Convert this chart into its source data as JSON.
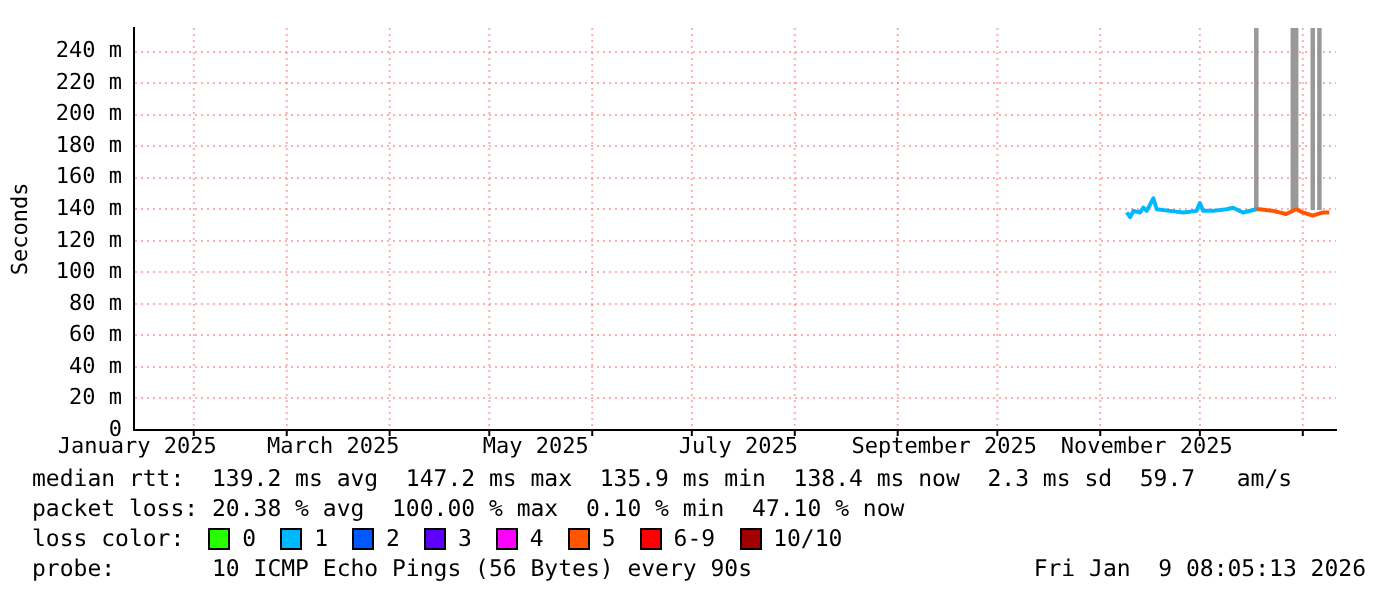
{
  "chart_data": {
    "type": "line",
    "ylabel": "Seconds",
    "xlim": [
      "2025-01-14",
      "2026-01-11"
    ],
    "xticks": [
      {
        "value": "2025-01-15",
        "label": "January 2025"
      },
      {
        "value": "2025-02",
        "label": null
      },
      {
        "value": "2025-03",
        "label": null
      },
      {
        "value": "2025-03-15",
        "label": "March 2025"
      },
      {
        "value": "2025-04",
        "label": null
      },
      {
        "value": "2025-05",
        "label": null
      },
      {
        "value": "2025-05-15",
        "label": "May 2025"
      },
      {
        "value": "2025-06",
        "label": null
      },
      {
        "value": "2025-07",
        "label": null
      },
      {
        "value": "2025-07-15",
        "label": "July 2025"
      },
      {
        "value": "2025-08",
        "label": null
      },
      {
        "value": "2025-09",
        "label": null
      },
      {
        "value": "2025-09-15",
        "label": "September 2025"
      },
      {
        "value": "2025-10",
        "label": null
      },
      {
        "value": "2025-11",
        "label": null
      },
      {
        "value": "2025-11-15",
        "label": "November 2025"
      },
      {
        "value": "2025-12",
        "label": null
      },
      {
        "value": "2026-01",
        "label": null
      }
    ],
    "ylim": [
      0,
      255
    ],
    "yticks": [
      0,
      {
        "value": 20,
        "label": "20 m"
      },
      {
        "value": 40,
        "label": "40 m"
      },
      {
        "value": 60,
        "label": "60 m"
      },
      {
        "value": 80,
        "label": "80 m"
      },
      {
        "value": 100,
        "label": "100 m"
      },
      {
        "value": 120,
        "label": "120 m"
      },
      {
        "value": 140,
        "label": "140 m"
      },
      {
        "value": 160,
        "label": "160 m"
      },
      {
        "value": 180,
        "label": "180 m"
      },
      {
        "value": 200,
        "label": "200 m"
      },
      {
        "value": 220,
        "label": "220 m"
      },
      {
        "value": 240,
        "label": "240 m"
      }
    ],
    "grid": true,
    "legend": "bottom",
    "legend_title": "loss color:",
    "series": [
      {
        "name": "0",
        "color": "#26ff00"
      },
      {
        "name": "1",
        "color": "#00b8ff",
        "x": [
          "2025-11-09",
          "2025-11-10",
          "2025-11-11",
          "2025-11-13",
          "2025-11-14",
          "2025-11-15",
          "2025-11-17",
          "2025-11-18",
          "2025-11-22",
          "2025-11-26",
          "2025-11-30",
          "2025-12-01",
          "2025-12-02",
          "2025-12-05",
          "2025-12-09",
          "2025-12-11",
          "2025-12-14",
          "2025-12-18"
        ],
        "values": [
          138,
          135,
          139,
          138,
          141,
          139,
          147,
          140,
          139,
          138,
          139,
          144,
          139,
          139,
          140,
          141,
          138,
          140
        ]
      },
      {
        "name": "2",
        "color": "#0059ff"
      },
      {
        "name": "3",
        "color": "#5e00ff"
      },
      {
        "name": "4",
        "color": "#ff00ff"
      },
      {
        "name": "5",
        "color": "#ff5500",
        "x": [
          "2025-12-18",
          "2025-12-19",
          "2025-12-23",
          "2025-12-27",
          "2025-12-30",
          "2026-01-01",
          "2026-01-04",
          "2026-01-07",
          "2026-01-09"
        ],
        "values": [
          140,
          140,
          139,
          137,
          140,
          138,
          136,
          138,
          138
        ]
      },
      {
        "name": "6-9",
        "color": "#ff0000"
      },
      {
        "name": "10/10",
        "color": "#a10000"
      },
      {
        "type": "bar",
        "color": "#999999",
        "x": [
          "2025-12-18",
          "2025-12-29",
          "2025-12-30",
          "2026-01-04",
          "2026-01-06"
        ],
        "base": [
          140,
          140,
          140,
          140,
          140
        ],
        "values": [
          115,
          115,
          115,
          115,
          115
        ]
      }
    ],
    "annotations": [
      "median rtt:  139.2 ms avg  147.2 ms max  135.9 ms min  138.4 ms now  2.3 ms sd  59.7   am/s",
      "packet loss: 20.38 % avg  100.00 % max  0.10 % min  47.10 % now",
      "probe:       10 ICMP Echo Pings (56 Bytes) every 90s",
      "Fri Jan  9 08:05:13 2026"
    ]
  }
}
